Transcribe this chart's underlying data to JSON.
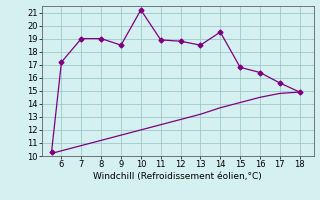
{
  "xlabel": "Windchill (Refroidissement éolien,°C)",
  "line1_x": [
    5.5,
    6,
    7,
    8,
    9,
    10,
    11,
    12,
    13,
    14,
    15,
    16,
    17,
    18
  ],
  "line1_y": [
    10.3,
    17.2,
    19.0,
    19.0,
    18.5,
    21.2,
    18.9,
    18.8,
    18.5,
    19.5,
    16.8,
    16.4,
    15.6,
    14.9
  ],
  "line2_x": [
    5.5,
    6,
    7,
    8,
    9,
    10,
    11,
    12,
    13,
    14,
    15,
    16,
    17,
    18
  ],
  "line2_y": [
    10.2,
    10.4,
    10.8,
    11.2,
    11.6,
    12.0,
    12.4,
    12.8,
    13.2,
    13.7,
    14.1,
    14.5,
    14.8,
    14.9
  ],
  "line_color": "#800080",
  "bg_color": "#d4f0f0",
  "grid_color": "#a0c8c8",
  "xlim": [
    5.0,
    18.7
  ],
  "ylim": [
    10,
    21.5
  ],
  "xticks": [
    6,
    7,
    8,
    9,
    10,
    11,
    12,
    13,
    14,
    15,
    16,
    17,
    18
  ],
  "yticks": [
    10,
    11,
    12,
    13,
    14,
    15,
    16,
    17,
    18,
    19,
    20,
    21
  ],
  "tick_fontsize": 6,
  "label_fontsize": 6.5,
  "markersize": 2.5
}
